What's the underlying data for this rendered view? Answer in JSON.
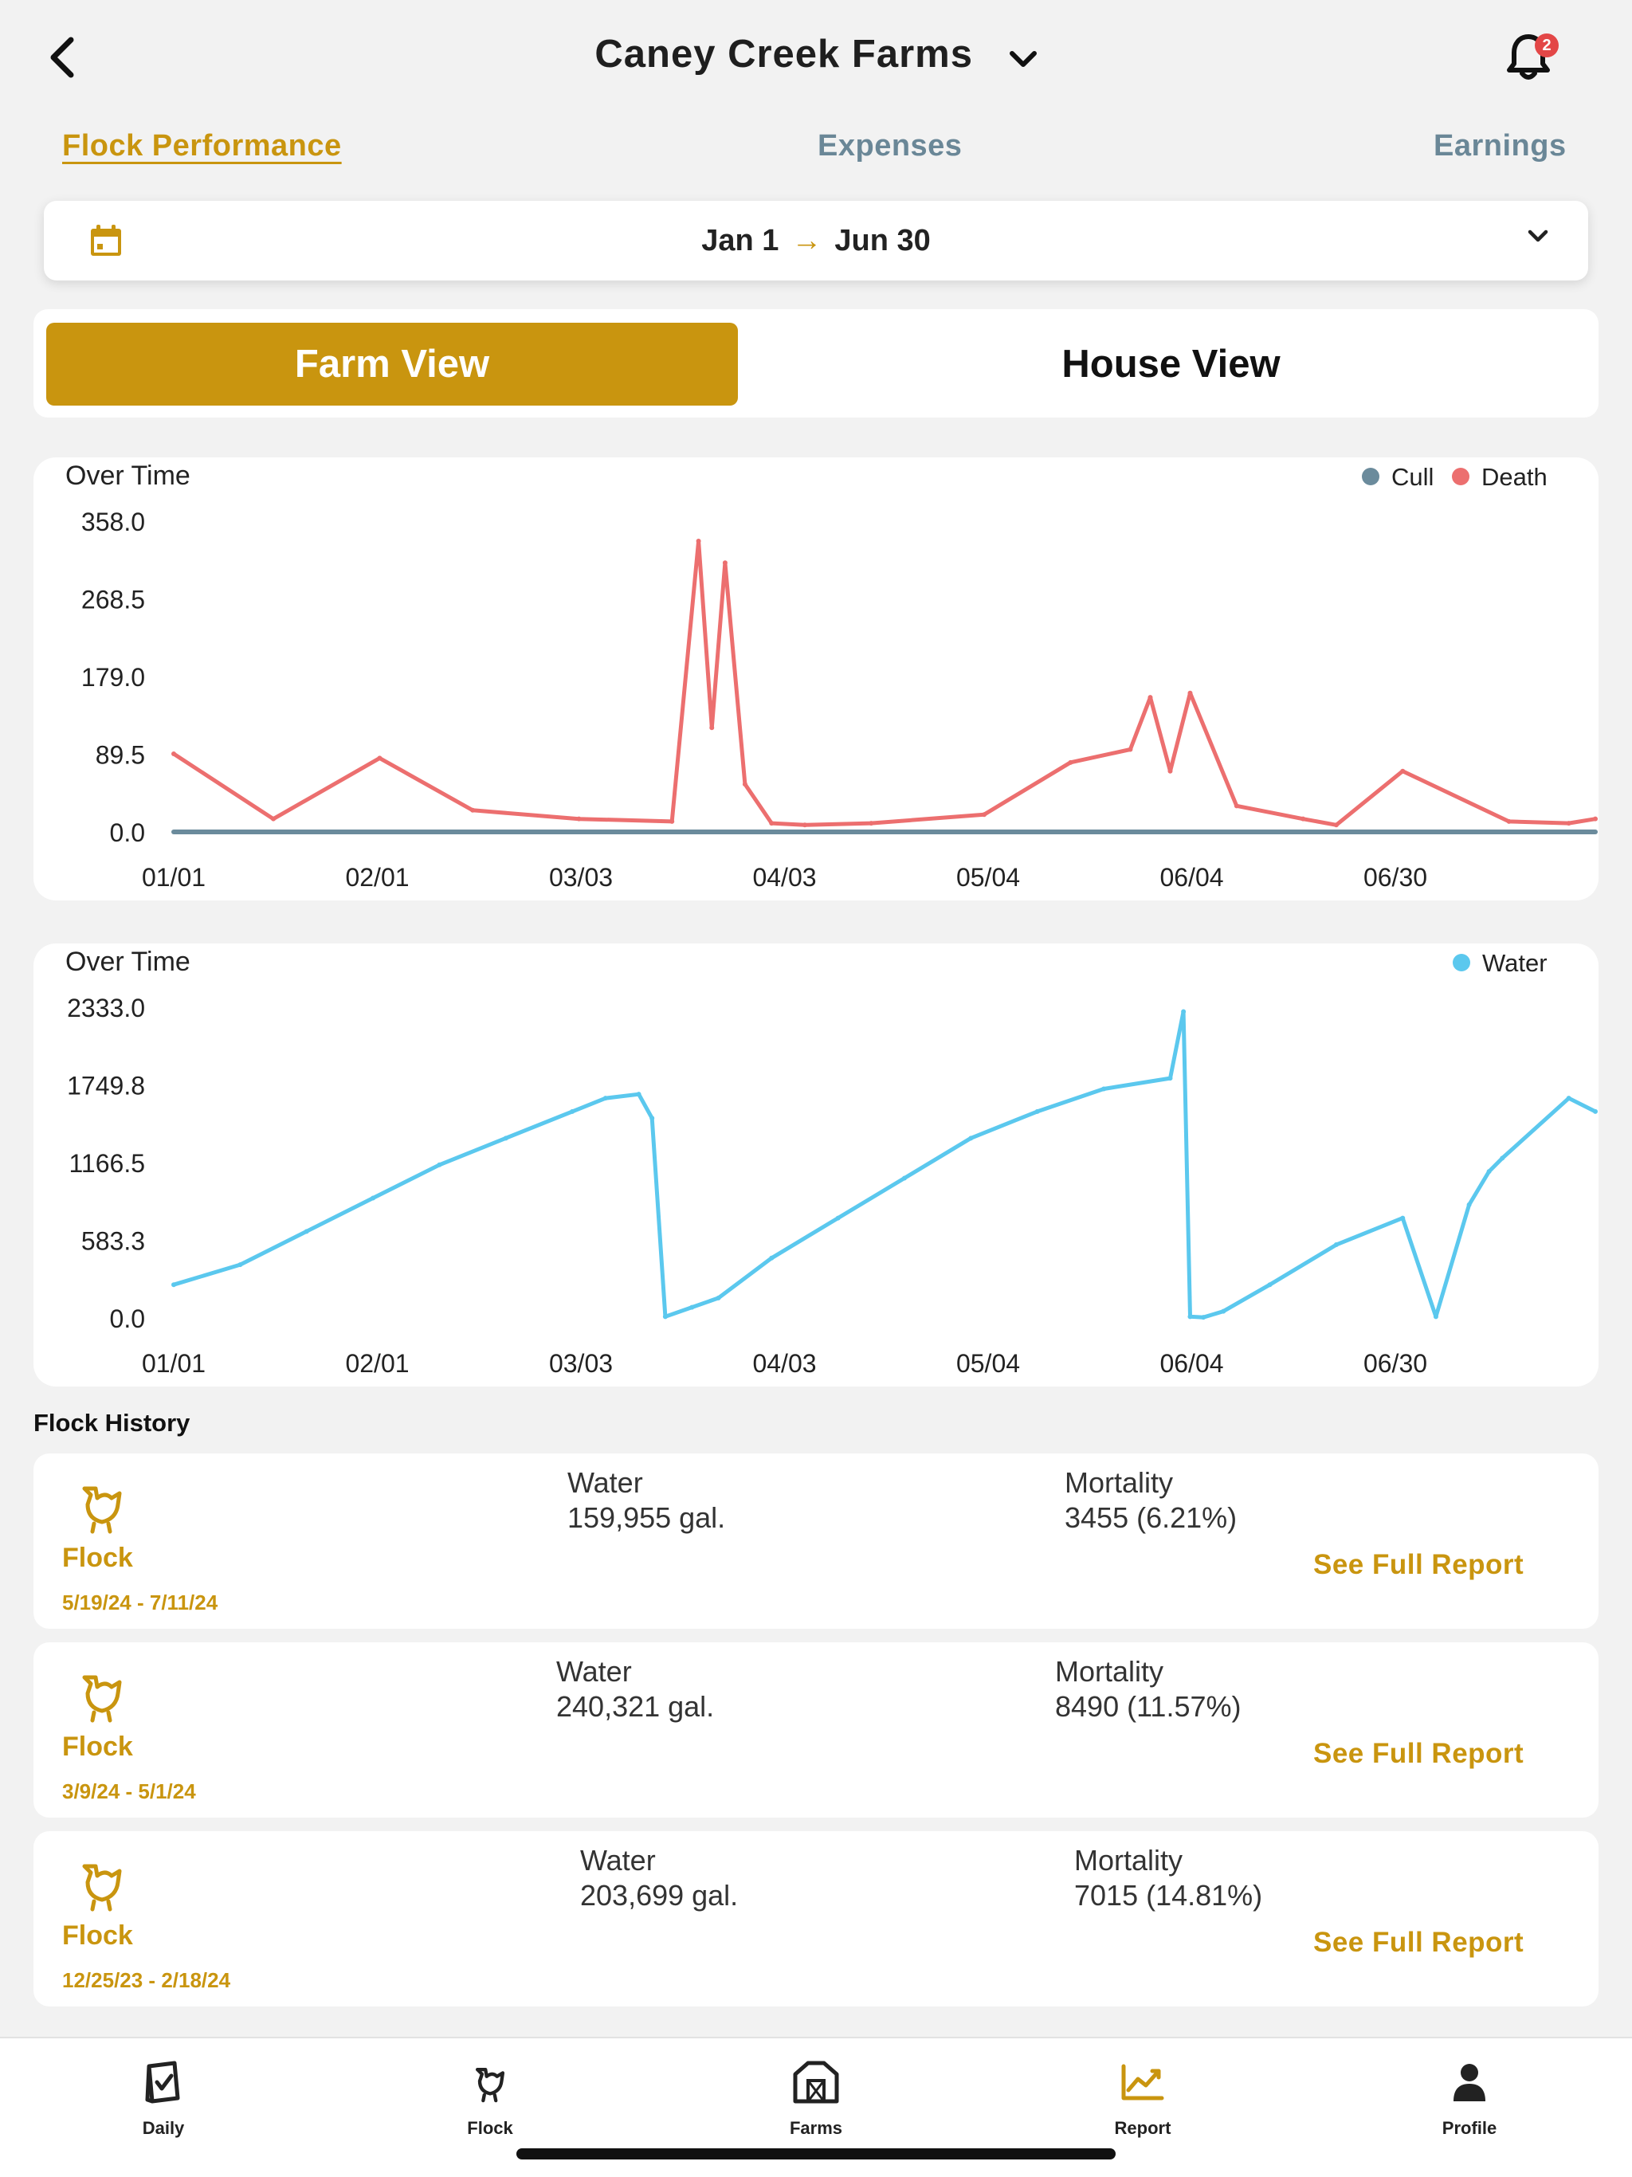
{
  "header": {
    "farm_name": "Caney Creek Farms",
    "notification_count": "2"
  },
  "tabs": [
    {
      "label": "Flock Performance",
      "active": true
    },
    {
      "label": "Expenses",
      "active": false
    },
    {
      "label": "Earnings",
      "active": false
    }
  ],
  "date_range": {
    "start": "Jan 1",
    "arrow": "→",
    "end": "Jun 30"
  },
  "view_toggle": {
    "farm_label": "Farm View",
    "house_label": "House View",
    "selected": "farm"
  },
  "colors": {
    "accent": "#c9950f",
    "cull": "#6b8b9c",
    "death": "#ec6f6f",
    "water": "#5bc8ee",
    "tab_inactive": "#6a8797"
  },
  "charts": {
    "mortality": {
      "title": "Over Time",
      "legend": [
        {
          "name": "Cull",
          "color": "#6b8b9c"
        },
        {
          "name": "Death",
          "color": "#ec6f6f"
        }
      ],
      "y_ticks": [
        "358.0",
        "268.5",
        "179.0",
        "89.5",
        "0.0"
      ],
      "x_ticks": [
        "01/01",
        "02/01",
        "03/03",
        "04/03",
        "05/04",
        "06/04",
        "06/30"
      ]
    },
    "water": {
      "title": "Over Time",
      "legend": [
        {
          "name": "Water",
          "color": "#5bc8ee"
        }
      ],
      "y_ticks": [
        "2333.0",
        "1749.8",
        "1166.5",
        "583.3",
        "0.0"
      ],
      "x_ticks": [
        "01/01",
        "02/01",
        "03/03",
        "04/03",
        "05/04",
        "06/04",
        "06/30"
      ]
    }
  },
  "chart_data": [
    {
      "type": "line",
      "title": "Over Time",
      "ylim": [
        0,
        358
      ],
      "x_ticks": [
        "01/01",
        "02/01",
        "03/03",
        "04/03",
        "05/04",
        "06/04",
        "06/30"
      ],
      "x": [
        0,
        15,
        31,
        45,
        61,
        75,
        79,
        81,
        83,
        86,
        90,
        95,
        105,
        122,
        135,
        144,
        147,
        150,
        153,
        160,
        170,
        175,
        185,
        201,
        210,
        214
      ],
      "series": [
        {
          "name": "Death",
          "values": [
            90,
            15,
            85,
            25,
            15,
            12,
            335,
            120,
            310,
            55,
            10,
            8,
            10,
            20,
            80,
            95,
            155,
            70,
            160,
            30,
            15,
            8,
            70,
            12,
            10,
            15
          ]
        },
        {
          "name": "Cull",
          "values": [
            0,
            0,
            0,
            0,
            0,
            0,
            0,
            0,
            0,
            0,
            0,
            0,
            0,
            0,
            0,
            0,
            0,
            0,
            0,
            0,
            0,
            0,
            0,
            0,
            0,
            0
          ]
        }
      ]
    },
    {
      "type": "line",
      "title": "Over Time",
      "ylim": [
        0,
        2333
      ],
      "x_ticks": [
        "01/01",
        "02/01",
        "03/03",
        "04/03",
        "05/04",
        "06/04",
        "06/30"
      ],
      "x": [
        0,
        10,
        20,
        30,
        40,
        50,
        60,
        65,
        70,
        72,
        74,
        78,
        82,
        90,
        100,
        110,
        120,
        130,
        140,
        150,
        152,
        153,
        155,
        158,
        165,
        175,
        185,
        190,
        195,
        198,
        200,
        210,
        214
      ],
      "series": [
        {
          "name": "Water",
          "values": [
            250,
            400,
            650,
            900,
            1150,
            1350,
            1550,
            1650,
            1680,
            1500,
            10,
            80,
            150,
            450,
            750,
            1050,
            1350,
            1550,
            1720,
            1800,
            2300,
            10,
            5,
            50,
            250,
            550,
            750,
            10,
            850,
            1100,
            1200,
            1650,
            1550
          ]
        }
      ]
    }
  ],
  "flock_history": {
    "title": "Flock History",
    "items": [
      {
        "name": "Flock",
        "dates": "5/19/24 - 7/11/24",
        "water_label": "Water",
        "water_value": "159,955 gal.",
        "mortality_label": "Mortality",
        "mortality_value": "3455 (6.21%)",
        "link": "See Full Report"
      },
      {
        "name": "Flock",
        "dates": "3/9/24 - 5/1/24",
        "water_label": "Water",
        "water_value": "240,321 gal.",
        "mortality_label": "Mortality",
        "mortality_value": "8490 (11.57%)",
        "link": "See Full Report"
      },
      {
        "name": "Flock",
        "dates": "12/25/23 - 2/18/24",
        "water_label": "Water",
        "water_value": "203,699 gal.",
        "mortality_label": "Mortality",
        "mortality_value": "7015 (14.81%)",
        "link": "See Full Report"
      }
    ]
  },
  "bottom_nav": [
    {
      "label": "Daily",
      "icon": "daily-icon"
    },
    {
      "label": "Flock",
      "icon": "hen-icon"
    },
    {
      "label": "Farms",
      "icon": "barn-icon"
    },
    {
      "label": "Report",
      "icon": "chart-icon",
      "active": true
    },
    {
      "label": "Profile",
      "icon": "person-icon"
    }
  ]
}
